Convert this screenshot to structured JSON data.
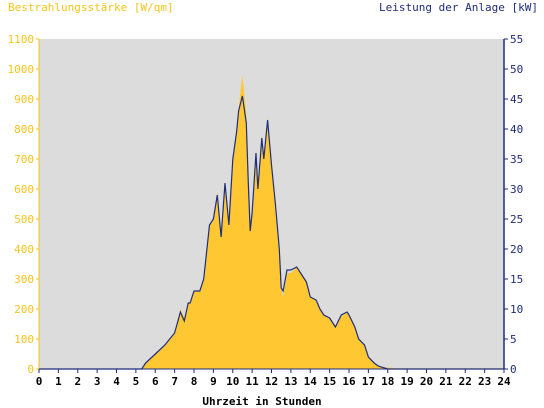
{
  "chart_data": {
    "type": "area",
    "left_axis_title": "Bestrahlungsstärke [W/qm]",
    "right_axis_title": "Leistung der Anlage [kW]",
    "xlabel": "Uhrzeit in Stunden",
    "xlim": [
      0,
      24
    ],
    "ylim_left": [
      0,
      1100
    ],
    "ylim_right": [
      0,
      55
    ],
    "x_ticks": [
      0,
      1,
      2,
      3,
      4,
      5,
      6,
      7,
      8,
      9,
      10,
      11,
      12,
      13,
      14,
      15,
      16,
      17,
      18,
      19,
      20,
      21,
      22,
      23,
      24
    ],
    "y_ticks_left": [
      0,
      100,
      200,
      300,
      400,
      500,
      600,
      700,
      800,
      900,
      1000,
      1100
    ],
    "y_ticks_right": [
      0,
      5,
      10,
      15,
      20,
      25,
      30,
      35,
      40,
      45,
      50,
      55
    ],
    "grid": false,
    "colors": {
      "irradiance_fill": "#ffc832",
      "power_line": "#1f2d7a",
      "plot_background": "#dcdcdc",
      "left_axis_text": "#f5c518",
      "right_axis_text": "#1f2d7a"
    },
    "series": [
      {
        "name": "Bestrahlungsstärke [W/qm]",
        "axis": "left",
        "x": [
          0,
          5.3,
          5.5,
          6.0,
          6.5,
          7.0,
          7.3,
          7.5,
          7.7,
          7.8,
          8.0,
          8.3,
          8.5,
          8.8,
          9.0,
          9.2,
          9.4,
          9.6,
          9.8,
          10.0,
          10.2,
          10.3,
          10.5,
          10.7,
          10.8,
          10.9,
          11.0,
          11.2,
          11.3,
          11.5,
          11.6,
          11.8,
          12.0,
          12.2,
          12.4,
          12.5,
          12.6,
          12.8,
          13.0,
          13.3,
          13.5,
          13.8,
          14.0,
          14.3,
          14.5,
          14.7,
          15.0,
          15.3,
          15.6,
          15.9,
          16.0,
          16.3,
          16.5,
          16.8,
          17.0,
          17.3,
          17.5,
          17.8,
          18.0,
          18.5,
          19.0,
          19.5,
          20.0,
          24
        ],
        "values": [
          0,
          0,
          20,
          50,
          80,
          120,
          200,
          170,
          220,
          220,
          260,
          260,
          300,
          480,
          500,
          590,
          450,
          620,
          480,
          700,
          790,
          870,
          980,
          850,
          610,
          450,
          520,
          730,
          600,
          780,
          700,
          840,
          680,
          550,
          400,
          270,
          240,
          320,
          320,
          340,
          320,
          290,
          240,
          230,
          200,
          180,
          170,
          140,
          175,
          190,
          180,
          140,
          100,
          80,
          40,
          20,
          10,
          5,
          5,
          2,
          2,
          2,
          2,
          2
        ]
      },
      {
        "name": "Leistung der Anlage [kW]",
        "axis": "right",
        "x": [
          0,
          5.3,
          5.5,
          6.0,
          6.5,
          7.0,
          7.3,
          7.5,
          7.7,
          7.8,
          8.0,
          8.3,
          8.5,
          8.8,
          9.0,
          9.2,
          9.4,
          9.6,
          9.8,
          10.0,
          10.2,
          10.3,
          10.5,
          10.7,
          10.8,
          10.9,
          11.0,
          11.2,
          11.3,
          11.5,
          11.6,
          11.8,
          12.0,
          12.2,
          12.4,
          12.5,
          12.6,
          12.8,
          13.0,
          13.3,
          13.5,
          13.8,
          14.0,
          14.3,
          14.5,
          14.7,
          15.0,
          15.3,
          15.6,
          15.9,
          16.0,
          16.3,
          16.5,
          16.8,
          17.0,
          17.3,
          17.5,
          17.8,
          18.0,
          18.5,
          19.0,
          19.5,
          20.0,
          24
        ],
        "values": [
          0,
          0,
          1,
          2.5,
          4,
          6,
          9.5,
          8,
          11,
          11,
          13,
          13,
          15,
          24,
          25,
          29,
          22,
          31,
          24,
          35,
          39.5,
          43,
          45.5,
          41,
          31,
          23,
          26,
          36,
          30,
          38.5,
          35,
          41.5,
          34,
          27.5,
          20,
          13.5,
          13,
          16.5,
          16.5,
          17,
          16,
          14.5,
          12,
          11.5,
          10,
          9,
          8.5,
          7,
          9,
          9.5,
          9,
          7,
          5,
          4,
          2,
          1,
          0.5,
          0.2,
          0,
          0,
          0,
          0,
          0,
          0
        ]
      }
    ]
  }
}
